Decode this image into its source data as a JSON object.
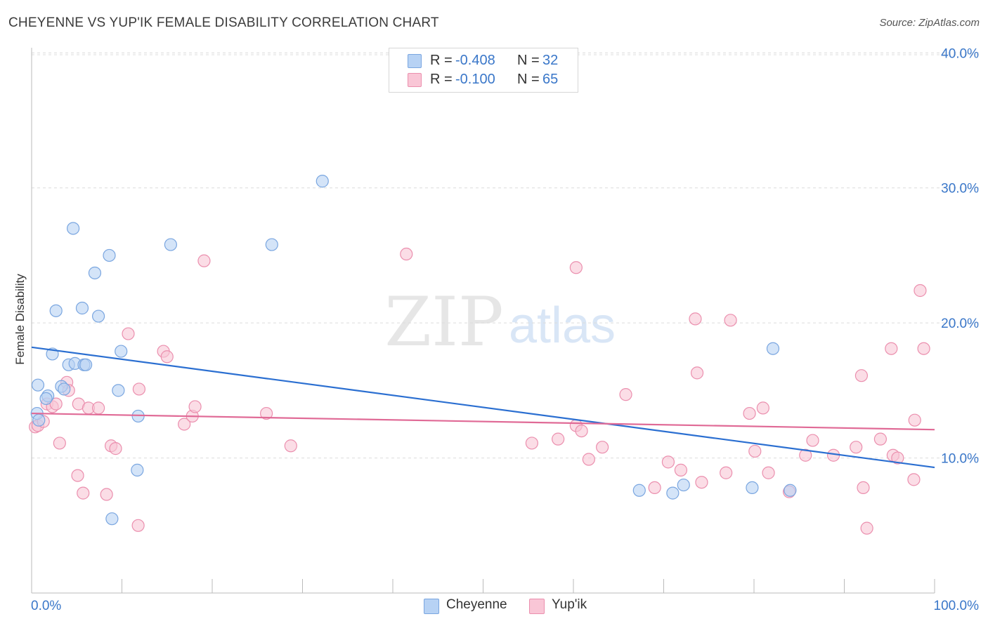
{
  "header": {
    "title": "CHEYENNE VS YUP'IK FEMALE DISABILITY CORRELATION CHART",
    "source": "Source: ZipAtlas.com"
  },
  "watermark": {
    "zip": "ZIP",
    "atlas": "atlas"
  },
  "legend": {
    "rows": [
      {
        "r_label": "R =",
        "r_value": "-0.408",
        "n_label": "N =",
        "n_value": "32"
      },
      {
        "r_label": "R =",
        "r_value": "-0.100",
        "n_label": "N =",
        "n_value": "65"
      }
    ]
  },
  "bottom_legend": {
    "cheyenne": "Cheyenne",
    "yupik": "Yup'ik"
  },
  "colors": {
    "cheyenne_fill": "#b7d2f4",
    "cheyenne_stroke": "#7aa6e0",
    "cheyenne_line": "#2b6fd1",
    "yupik_fill": "#f9c6d6",
    "yupik_stroke": "#eb8fae",
    "yupik_line": "#e06a96",
    "axis_text": "#3a77c9",
    "grid": "#dcdcdc"
  },
  "chart_data": {
    "type": "scatter",
    "title": "CHEYENNE VS YUP'IK FEMALE DISABILITY CORRELATION CHART",
    "xlabel": "",
    "ylabel": "Female Disability",
    "xlim": [
      0,
      100
    ],
    "ylim": [
      0,
      40.9
    ],
    "x_tick_labels": [
      "0.0%",
      "100.0%"
    ],
    "y_ticks": [
      10,
      20,
      30,
      40
    ],
    "y_tick_labels": [
      "10.0%",
      "20.0%",
      "30.0%",
      "40.0%"
    ],
    "grid": "horizontal dashed",
    "legend_position": "top-center",
    "series": [
      {
        "name": "Cheyenne",
        "r": -0.408,
        "n": 32,
        "trend": {
          "x": [
            0,
            100
          ],
          "y": [
            18.2,
            9.3
          ]
        },
        "points": [
          [
            0.7,
            15.4
          ],
          [
            0.6,
            13.3
          ],
          [
            0.8,
            12.8
          ],
          [
            1.8,
            14.6
          ],
          [
            1.6,
            14.4
          ],
          [
            2.3,
            17.7
          ],
          [
            2.7,
            20.9
          ],
          [
            3.3,
            15.3
          ],
          [
            3.6,
            15.1
          ],
          [
            4.1,
            16.9
          ],
          [
            4.6,
            27.0
          ],
          [
            4.8,
            17.0
          ],
          [
            5.6,
            21.1
          ],
          [
            5.8,
            16.9
          ],
          [
            6.0,
            16.9
          ],
          [
            7.0,
            23.7
          ],
          [
            7.4,
            20.5
          ],
          [
            8.6,
            25.0
          ],
          [
            8.9,
            5.5
          ],
          [
            9.6,
            15.0
          ],
          [
            9.9,
            17.9
          ],
          [
            11.8,
            13.1
          ],
          [
            11.7,
            9.1
          ],
          [
            15.4,
            25.8
          ],
          [
            26.6,
            25.8
          ],
          [
            32.2,
            30.5
          ],
          [
            67.3,
            7.6
          ],
          [
            71.0,
            7.4
          ],
          [
            72.2,
            8.0
          ],
          [
            79.8,
            7.8
          ],
          [
            82.1,
            18.1
          ],
          [
            84.0,
            7.6
          ]
        ]
      },
      {
        "name": "Yup'ik",
        "r": -0.1,
        "n": 65,
        "trend": {
          "x": [
            0,
            100
          ],
          "y": [
            13.3,
            12.1
          ]
        },
        "points": [
          [
            0.4,
            12.3
          ],
          [
            0.7,
            12.4
          ],
          [
            1.3,
            12.7
          ],
          [
            1.7,
            14.0
          ],
          [
            2.3,
            13.8
          ],
          [
            2.7,
            14.0
          ],
          [
            3.1,
            11.1
          ],
          [
            3.9,
            15.6
          ],
          [
            4.1,
            15.0
          ],
          [
            5.1,
            8.7
          ],
          [
            5.2,
            14.0
          ],
          [
            5.7,
            7.4
          ],
          [
            6.3,
            13.7
          ],
          [
            7.4,
            13.7
          ],
          [
            8.3,
            7.3
          ],
          [
            8.8,
            10.9
          ],
          [
            9.3,
            10.7
          ],
          [
            10.7,
            19.2
          ],
          [
            11.8,
            5.0
          ],
          [
            11.9,
            15.1
          ],
          [
            14.6,
            17.9
          ],
          [
            15.0,
            17.5
          ],
          [
            16.9,
            12.5
          ],
          [
            17.8,
            13.1
          ],
          [
            18.1,
            13.8
          ],
          [
            19.1,
            24.6
          ],
          [
            26.0,
            13.3
          ],
          [
            28.7,
            10.9
          ],
          [
            41.5,
            25.1
          ],
          [
            55.4,
            11.1
          ],
          [
            58.3,
            11.4
          ],
          [
            60.3,
            24.1
          ],
          [
            60.3,
            12.4
          ],
          [
            60.9,
            12.0
          ],
          [
            61.7,
            9.9
          ],
          [
            63.2,
            10.8
          ],
          [
            65.8,
            14.7
          ],
          [
            69.0,
            7.8
          ],
          [
            70.5,
            9.7
          ],
          [
            71.9,
            9.1
          ],
          [
            73.5,
            20.3
          ],
          [
            73.7,
            16.3
          ],
          [
            74.2,
            8.2
          ],
          [
            76.9,
            8.9
          ],
          [
            77.4,
            20.2
          ],
          [
            79.5,
            13.3
          ],
          [
            80.1,
            10.5
          ],
          [
            81.0,
            13.7
          ],
          [
            81.6,
            8.9
          ],
          [
            83.9,
            7.5
          ],
          [
            85.7,
            10.2
          ],
          [
            86.5,
            11.3
          ],
          [
            88.8,
            10.2
          ],
          [
            91.3,
            10.8
          ],
          [
            91.9,
            16.1
          ],
          [
            92.1,
            7.8
          ],
          [
            94.0,
            11.4
          ],
          [
            95.2,
            18.1
          ],
          [
            95.4,
            10.2
          ],
          [
            95.9,
            10.0
          ],
          [
            97.8,
            12.8
          ],
          [
            97.7,
            8.4
          ],
          [
            98.4,
            22.4
          ],
          [
            98.8,
            18.1
          ],
          [
            92.5,
            4.8
          ]
        ]
      }
    ]
  }
}
